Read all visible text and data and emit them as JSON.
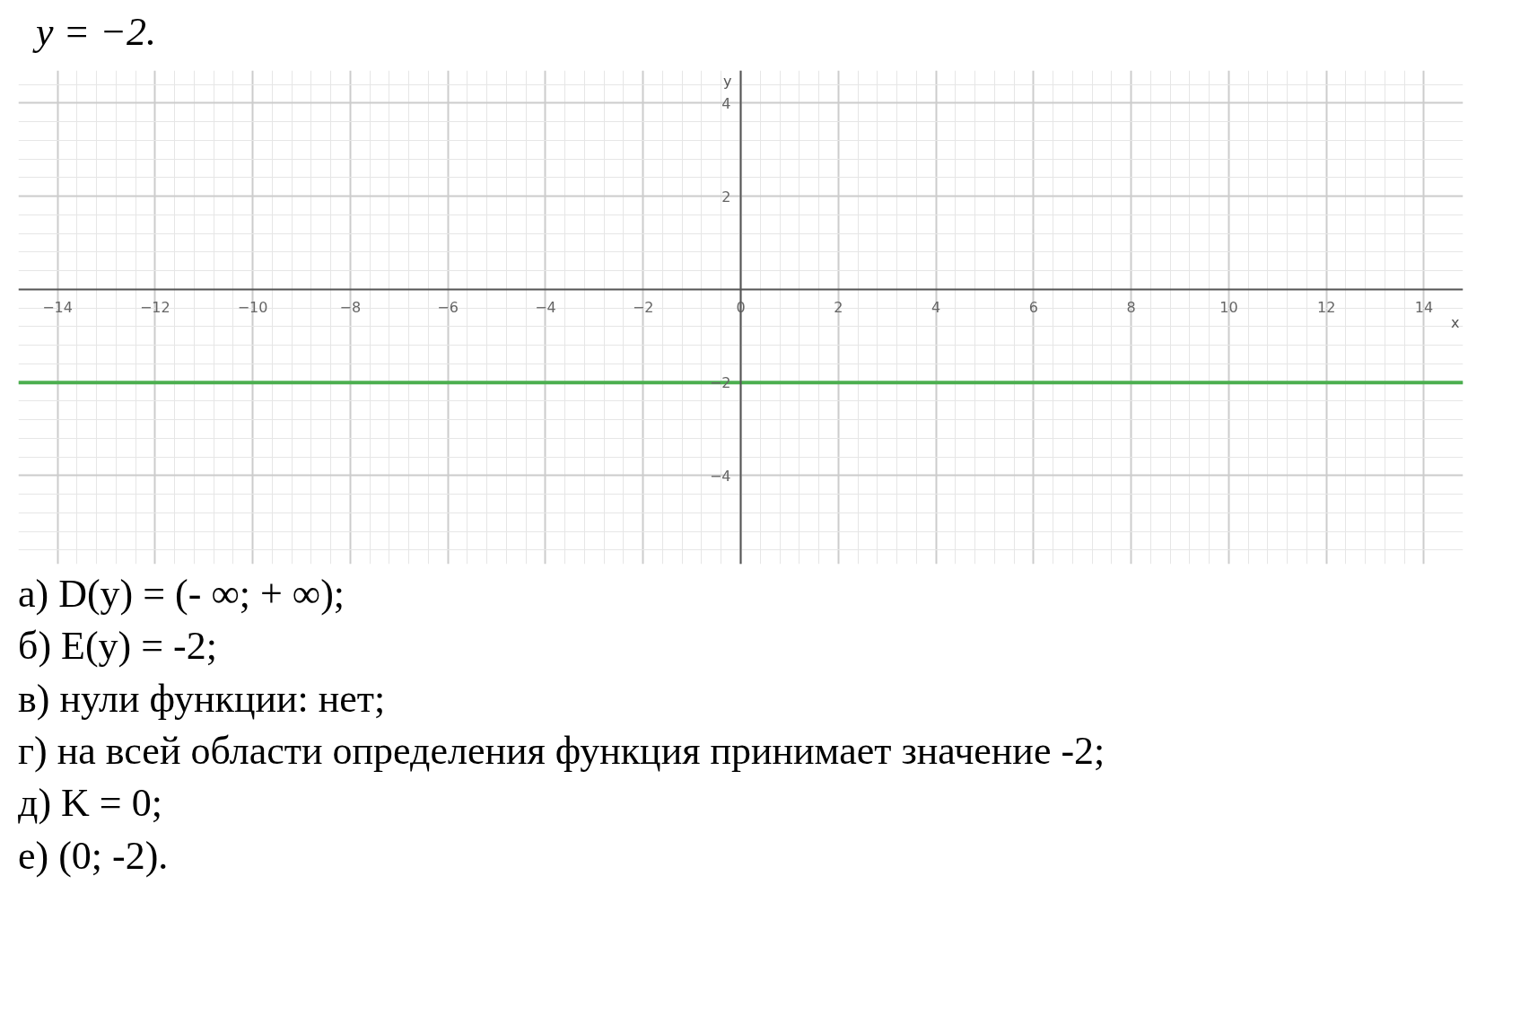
{
  "chart_data": {
    "type": "line",
    "title": "y = −2.",
    "xlabel": "x",
    "ylabel": "y",
    "x": [
      -14.8,
      14.8
    ],
    "series": [
      {
        "color": "#4caf50",
        "values": [
          -2,
          -2
        ]
      }
    ],
    "xlim": [
      -14.8,
      14.8
    ],
    "ylim": [
      -5.9,
      4.7
    ],
    "xticks": [
      -14,
      -12,
      -10,
      -8,
      -6,
      -4,
      -2,
      0,
      2,
      4,
      6,
      8,
      10,
      12,
      14
    ],
    "yticks": [
      -4,
      -2,
      2,
      4
    ],
    "grid": true,
    "line_style": "solid",
    "marker": "none",
    "annotations": [
      "а) D(y) = (- ∞; + ∞);",
      "б) E(y) = -2;",
      "в) нули функции: нет;",
      "г) на всей области определения функция принимает значение -2;",
      "д) K = 0;",
      "е) (0; -2)."
    ]
  }
}
